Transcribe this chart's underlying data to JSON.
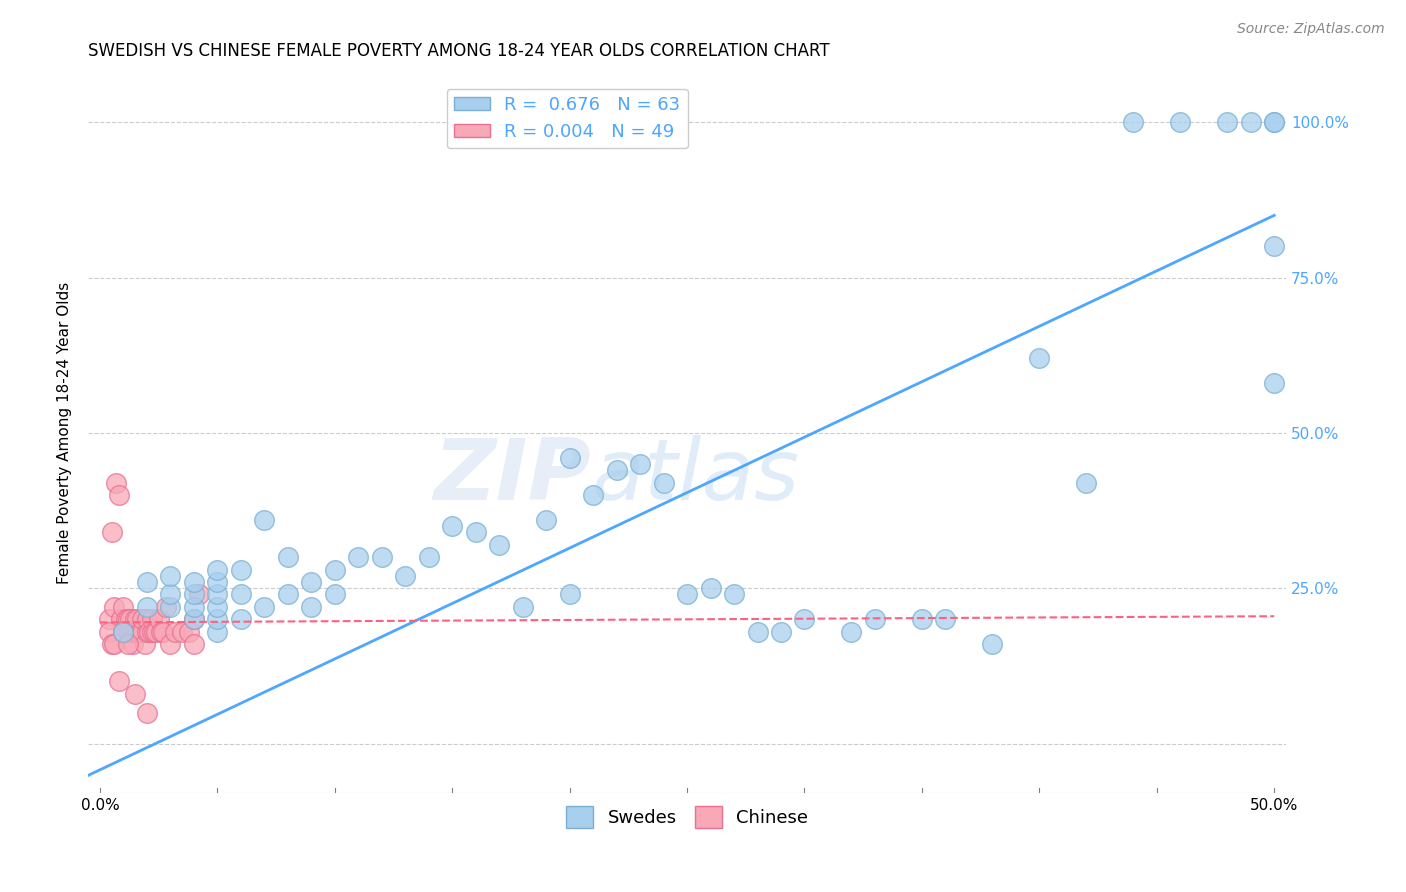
{
  "title": "SWEDISH VS CHINESE FEMALE POVERTY AMONG 18-24 YEAR OLDS CORRELATION CHART",
  "source": "Source: ZipAtlas.com",
  "ylabel": "Female Poverty Among 18-24 Year Olds",
  "xlim": [
    -0.005,
    0.505
  ],
  "ylim": [
    -0.08,
    1.08
  ],
  "xticks": [
    0.0,
    0.05,
    0.1,
    0.15,
    0.2,
    0.25,
    0.3,
    0.35,
    0.4,
    0.45,
    0.5
  ],
  "xticklabels": [
    "0.0%",
    "",
    "",
    "",
    "",
    "",
    "",
    "",
    "",
    "",
    "50.0%"
  ],
  "ytick_positions": [
    0.0,
    0.25,
    0.5,
    0.75,
    1.0
  ],
  "ytick_labels": [
    "",
    "25.0%",
    "50.0%",
    "75.0%",
    "100.0%"
  ],
  "swedes_R": 0.676,
  "swedes_N": 63,
  "chinese_R": 0.004,
  "chinese_N": 49,
  "blue_dot_face": "#a8cfee",
  "blue_dot_edge": "#7ab0d4",
  "pink_dot_face": "#f9a8b8",
  "pink_dot_edge": "#e87090",
  "blue_line_color": "#4da6ff",
  "pink_line_color": "#ff6080",
  "grid_color": "#cccccc",
  "watermark": "ZIPatlas",
  "background_color": "#ffffff",
  "swedes_x": [
    0.01,
    0.02,
    0.02,
    0.03,
    0.03,
    0.03,
    0.04,
    0.04,
    0.04,
    0.04,
    0.05,
    0.05,
    0.05,
    0.05,
    0.05,
    0.05,
    0.06,
    0.06,
    0.06,
    0.07,
    0.07,
    0.08,
    0.08,
    0.09,
    0.09,
    0.1,
    0.1,
    0.11,
    0.12,
    0.13,
    0.14,
    0.15,
    0.16,
    0.17,
    0.18,
    0.19,
    0.2,
    0.2,
    0.21,
    0.22,
    0.23,
    0.24,
    0.25,
    0.26,
    0.27,
    0.28,
    0.29,
    0.3,
    0.32,
    0.33,
    0.35,
    0.36,
    0.38,
    0.4,
    0.42,
    0.44,
    0.46,
    0.48,
    0.49,
    0.5,
    0.5,
    0.5,
    0.5
  ],
  "swedes_y": [
    0.18,
    0.22,
    0.26,
    0.22,
    0.24,
    0.27,
    0.2,
    0.22,
    0.24,
    0.26,
    0.18,
    0.2,
    0.22,
    0.24,
    0.26,
    0.28,
    0.2,
    0.24,
    0.28,
    0.22,
    0.36,
    0.24,
    0.3,
    0.22,
    0.26,
    0.24,
    0.28,
    0.3,
    0.3,
    0.27,
    0.3,
    0.35,
    0.34,
    0.32,
    0.22,
    0.36,
    0.24,
    0.46,
    0.4,
    0.44,
    0.45,
    0.42,
    0.24,
    0.25,
    0.24,
    0.18,
    0.18,
    0.2,
    0.18,
    0.2,
    0.2,
    0.2,
    0.16,
    0.62,
    0.42,
    1.0,
    1.0,
    1.0,
    1.0,
    1.0,
    0.58,
    0.8,
    1.0
  ],
  "chinese_x": [
    0.004,
    0.005,
    0.006,
    0.007,
    0.008,
    0.009,
    0.01,
    0.01,
    0.011,
    0.012,
    0.012,
    0.013,
    0.013,
    0.014,
    0.014,
    0.015,
    0.015,
    0.016,
    0.016,
    0.017,
    0.018,
    0.018,
    0.019,
    0.02,
    0.02,
    0.021,
    0.022,
    0.022,
    0.023,
    0.024,
    0.025,
    0.026,
    0.027,
    0.028,
    0.03,
    0.032,
    0.035,
    0.038,
    0.04,
    0.042,
    0.004,
    0.005,
    0.006,
    0.008,
    0.01,
    0.012,
    0.015,
    0.02,
    0.04
  ],
  "chinese_y": [
    0.2,
    0.34,
    0.22,
    0.42,
    0.4,
    0.2,
    0.22,
    0.18,
    0.2,
    0.18,
    0.2,
    0.18,
    0.2,
    0.16,
    0.18,
    0.2,
    0.18,
    0.18,
    0.2,
    0.18,
    0.18,
    0.2,
    0.16,
    0.18,
    0.2,
    0.18,
    0.18,
    0.2,
    0.18,
    0.18,
    0.2,
    0.18,
    0.18,
    0.22,
    0.16,
    0.18,
    0.18,
    0.18,
    0.2,
    0.24,
    0.18,
    0.16,
    0.16,
    0.1,
    0.18,
    0.16,
    0.08,
    0.05,
    0.16
  ],
  "blue_line_x0": -0.01,
  "blue_line_x1": 0.5,
  "blue_line_y0": -0.06,
  "blue_line_y1": 0.85,
  "pink_line_x0": 0.0,
  "pink_line_x1": 0.5,
  "pink_line_y0": 0.195,
  "pink_line_y1": 0.205
}
